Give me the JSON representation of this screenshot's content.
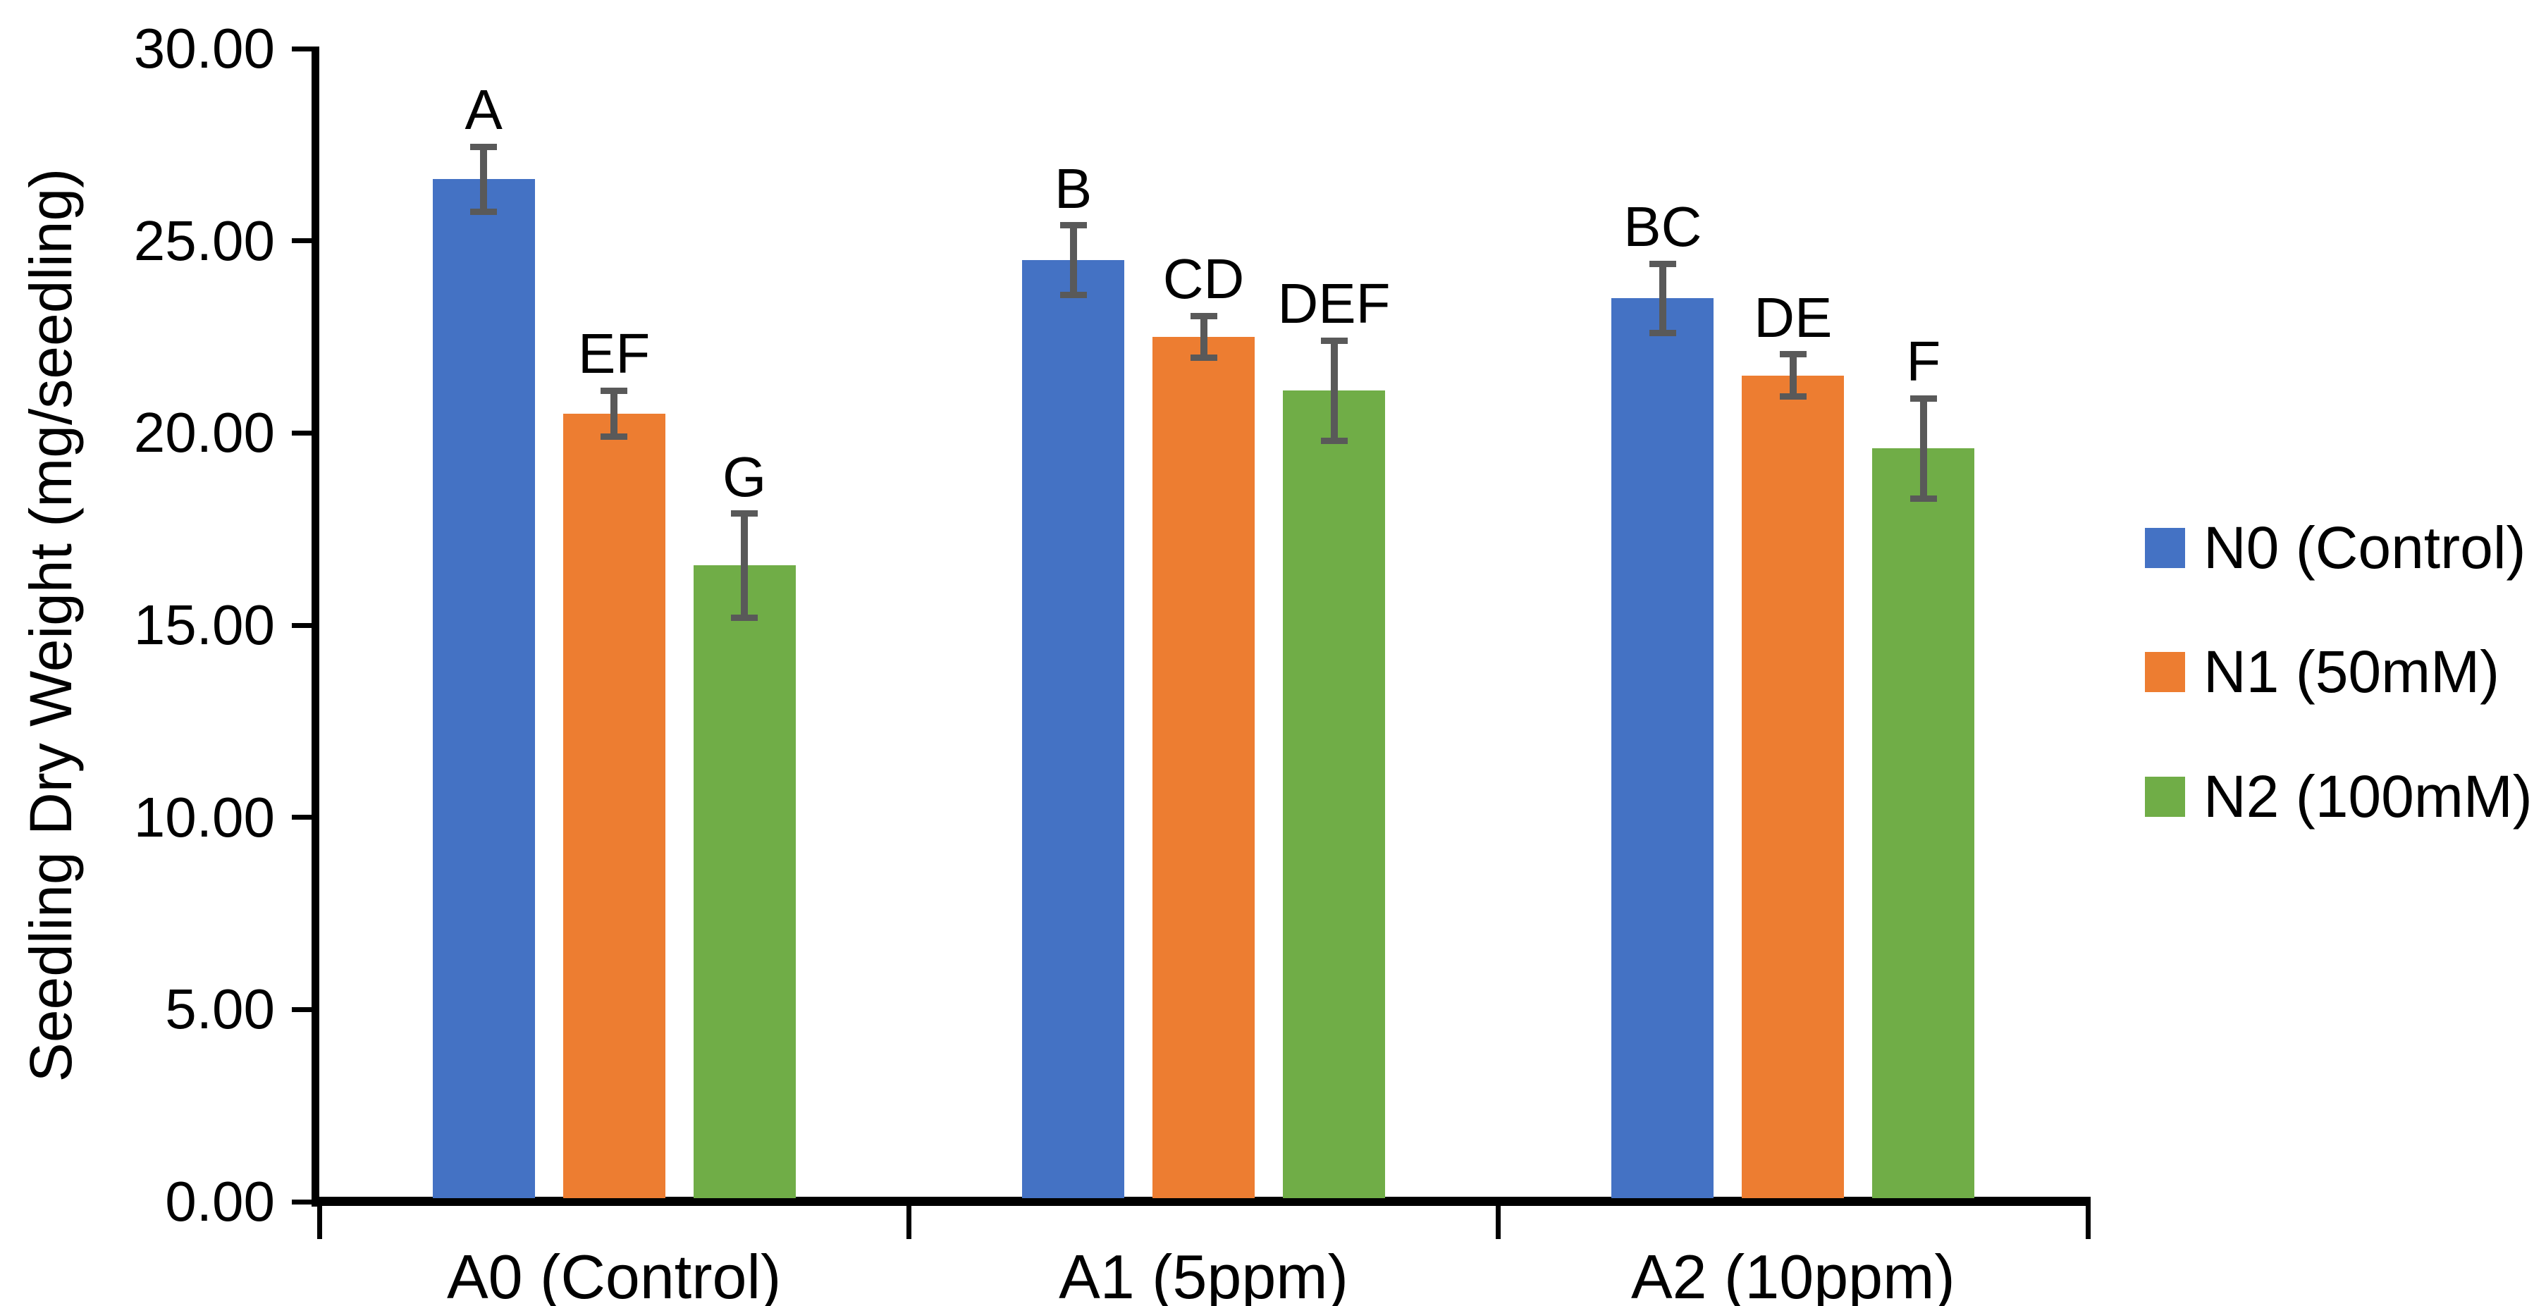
{
  "chart_data": {
    "type": "bar",
    "title": "",
    "ylabel": "Seedling Dry Weight (mg/seedling)",
    "xlabel": "",
    "ylim": [
      0,
      30
    ],
    "ytick_step": 5,
    "ytick_labels": [
      "30.00",
      "25.00",
      "20.00",
      "15.00",
      "10.00",
      "5.00",
      "0.00"
    ],
    "categories": [
      "A0 (Control)",
      "A1 (5ppm)",
      "A2 (10ppm)"
    ],
    "series": [
      {
        "name": "N0 (Control)",
        "color": "#4472C4",
        "values": [
          26.6,
          24.5,
          23.5
        ],
        "errors": [
          0.85,
          0.9,
          0.9
        ],
        "sig_labels": [
          "A",
          "B",
          "BC"
        ]
      },
      {
        "name": "N1 (50mM)",
        "color": "#ED7D31",
        "values": [
          20.5,
          22.5,
          21.5
        ],
        "errors": [
          0.6,
          0.55,
          0.55
        ],
        "sig_labels": [
          "EF",
          "CD",
          "DE"
        ]
      },
      {
        "name": "N2 (100mM)",
        "color": "#70AD47",
        "values": [
          16.55,
          21.1,
          19.6
        ],
        "errors": [
          1.35,
          1.3,
          1.3
        ],
        "sig_labels": [
          "G",
          "DEF",
          "F"
        ]
      }
    ],
    "error_bar_color": "#595959",
    "axis_color": "#000000",
    "legend_position": "right",
    "grid": false
  }
}
